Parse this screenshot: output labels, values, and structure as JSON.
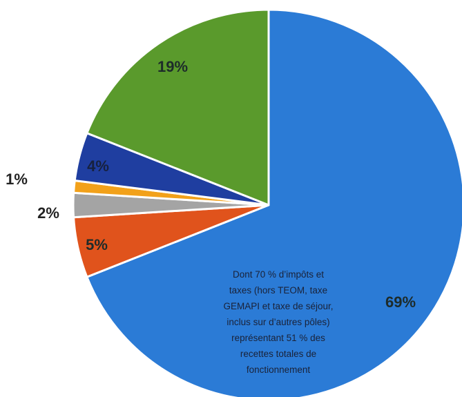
{
  "colors": {
    "blue": "#2b7bd6",
    "green": "#5a9a2c",
    "navy": "#1f3ea0",
    "amber": "#f2a11a",
    "gray": "#a4a4a4",
    "orange": "#e0531c"
  },
  "chart_data": {
    "type": "pie",
    "title": "",
    "unit": "%",
    "slices": [
      {
        "label": "69%",
        "value": 69,
        "color": "#2b7bd6"
      },
      {
        "label": "5%",
        "value": 5,
        "color": "#e0531c"
      },
      {
        "label": "2%",
        "value": 2,
        "color": "#a4a4a4"
      },
      {
        "label": "1%",
        "value": 1,
        "color": "#f2a11a"
      },
      {
        "label": "4%",
        "value": 4,
        "color": "#1f3ea0"
      },
      {
        "label": "19%",
        "value": 19,
        "color": "#5a9a2c"
      }
    ],
    "annotation": {
      "lines": [
        "Dont 70 % d’impôts et",
        "taxes (hors TEOM, taxe",
        "GEMAPI et taxe de séjour,",
        "inclus sur d’autres pôles)",
        "représentant 51 % des",
        "recettes totales de",
        "fonctionnement"
      ]
    }
  }
}
